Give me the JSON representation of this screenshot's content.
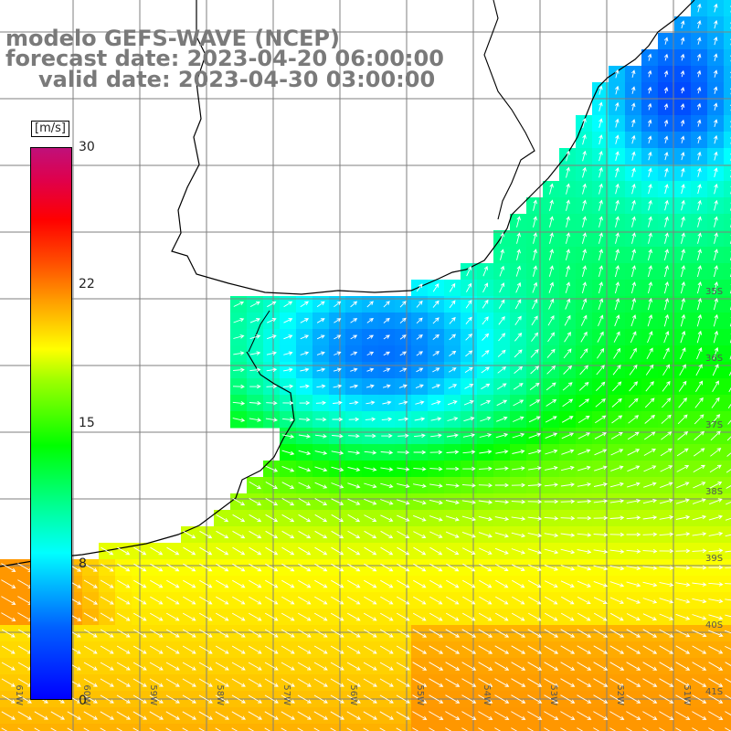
{
  "title": {
    "line1": "modelo GEFS-WAVE (NCEP)",
    "line2": "forecast date: 2023-04-20 06:00:00",
    "line3": "valid date: 2023-04-30 03:00:00"
  },
  "colorbar": {
    "unit": "[m/s]",
    "ticks": [
      "30",
      "22",
      "15",
      "8",
      "0"
    ],
    "stops": [
      "#0000ff",
      "#00c8ff",
      "#00ffff",
      "#00ff00",
      "#ffff00",
      "#ff5000",
      "#ff0000",
      "#c0107a"
    ]
  },
  "axes": {
    "lat_labels": [
      "35S",
      "36S",
      "37S",
      "38S",
      "39S",
      "40S",
      "41S"
    ],
    "lon_labels": [
      "61W",
      "60W",
      "59W",
      "58W",
      "57W",
      "56W",
      "55W",
      "54W",
      "53W",
      "52W",
      "51W"
    ]
  },
  "colors": {
    "land": "#ffffff",
    "grid": "#7f7f7f",
    "coast": "#000000",
    "arrow": "#ffffff"
  }
}
